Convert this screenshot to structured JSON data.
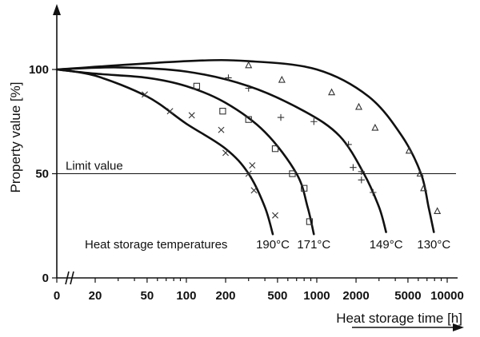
{
  "chart_data": {
    "type": "line",
    "xlabel": "Heat storage time [h]",
    "ylabel": "Property value [%]",
    "x_scale": "log",
    "x_ticks": [
      "0",
      "20",
      "50",
      "100",
      "200",
      "500",
      "1000",
      "2000",
      "5000",
      "10000"
    ],
    "y_ticks": [
      "0",
      "50",
      "100"
    ],
    "ylim": [
      0,
      125
    ],
    "limit_line": {
      "label": "Limit value",
      "y": 50
    },
    "legend_title": "Heat storage temperatures",
    "series": [
      {
        "name": "190°C",
        "marker": "x",
        "curve": [
          [
            10,
            100
          ],
          [
            20,
            97
          ],
          [
            50,
            87
          ],
          [
            100,
            74
          ],
          [
            200,
            62
          ],
          [
            300,
            50
          ],
          [
            400,
            34
          ],
          [
            460,
            21
          ]
        ],
        "points": [
          [
            48,
            88
          ],
          [
            75,
            80
          ],
          [
            110,
            78
          ],
          [
            185,
            71
          ],
          [
            200,
            60
          ],
          [
            320,
            54
          ],
          [
            300,
            50
          ],
          [
            330,
            42
          ],
          [
            480,
            30
          ]
        ]
      },
      {
        "name": "171°C",
        "marker": "square",
        "curve": [
          [
            10,
            100
          ],
          [
            20,
            98
          ],
          [
            50,
            96
          ],
          [
            100,
            92
          ],
          [
            200,
            84
          ],
          [
            400,
            70
          ],
          [
            700,
            50
          ],
          [
            850,
            34
          ],
          [
            950,
            21
          ]
        ],
        "points": [
          [
            120,
            92
          ],
          [
            190,
            80
          ],
          [
            300,
            76
          ],
          [
            480,
            62
          ],
          [
            650,
            50
          ],
          [
            800,
            43
          ],
          [
            880,
            27
          ]
        ]
      },
      {
        "name": "149°C",
        "marker": "plus",
        "curve": [
          [
            10,
            100
          ],
          [
            30,
            101
          ],
          [
            100,
            99
          ],
          [
            300,
            92
          ],
          [
            800,
            80
          ],
          [
            1500,
            68
          ],
          [
            2300,
            50
          ],
          [
            3000,
            34
          ],
          [
            3400,
            22
          ]
        ],
        "points": [
          [
            210,
            96
          ],
          [
            300,
            91
          ],
          [
            530,
            77
          ],
          [
            950,
            75
          ],
          [
            1750,
            64
          ],
          [
            1900,
            53
          ],
          [
            2200,
            51
          ],
          [
            2200,
            47
          ],
          [
            2700,
            41
          ]
        ]
      },
      {
        "name": "130°C",
        "marker": "triangle",
        "curve": [
          [
            10,
            100
          ],
          [
            100,
            104
          ],
          [
            300,
            104
          ],
          [
            1000,
            100
          ],
          [
            2500,
            87
          ],
          [
            4500,
            68
          ],
          [
            6300,
            50
          ],
          [
            7200,
            34
          ],
          [
            7900,
            22
          ]
        ],
        "points": [
          [
            300,
            102
          ],
          [
            540,
            95
          ],
          [
            1300,
            89
          ],
          [
            2100,
            82
          ],
          [
            2800,
            72
          ],
          [
            5100,
            61
          ],
          [
            6200,
            50
          ],
          [
            6600,
            43
          ],
          [
            8400,
            32
          ]
        ]
      }
    ]
  }
}
